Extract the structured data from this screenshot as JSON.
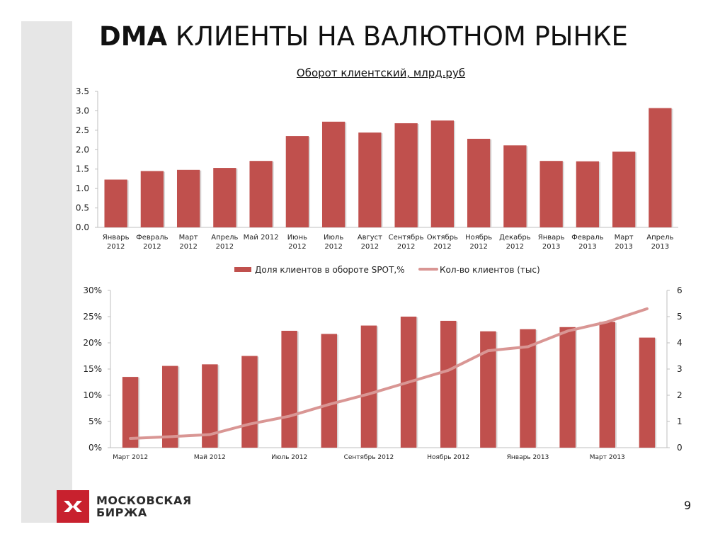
{
  "title": {
    "bold": "DMA",
    "rest": " КЛИЕНТЫ НА ВАЛЮТНОМ РЫНКЕ"
  },
  "page_number": "9",
  "logo": {
    "line1": "МОСКОВСКАЯ",
    "line2": "БИРЖА"
  },
  "colors": {
    "bar": "#c0504d",
    "line": "#d99694",
    "brand": "#c8212e"
  },
  "chart_data": [
    {
      "type": "bar",
      "title": "Оборот клиентский,  млрд.руб",
      "ylim": [
        0,
        3.5
      ],
      "yticks": [
        "0.0",
        "0.5",
        "1.0",
        "1.5",
        "2.0",
        "2.5",
        "3.0",
        "3.5"
      ],
      "categories": [
        [
          "Январь",
          "2012"
        ],
        [
          "Февраль",
          "2012"
        ],
        [
          "Март",
          "2012"
        ],
        [
          "Апрель",
          "2012"
        ],
        [
          "Май 2012"
        ],
        [
          "Июнь",
          "2012"
        ],
        [
          "Июль",
          "2012"
        ],
        [
          "Август",
          "2012"
        ],
        [
          "Сентябрь",
          "2012"
        ],
        [
          "Октябрь",
          "2012"
        ],
        [
          "Ноябрь",
          "2012"
        ],
        [
          "Декабрь",
          "2012"
        ],
        [
          "Январь",
          "2013"
        ],
        [
          "Февраль",
          "2013"
        ],
        [
          "Март",
          "2013"
        ],
        [
          "Апрель",
          "2013"
        ]
      ],
      "values": [
        1.23,
        1.45,
        1.48,
        1.53,
        1.71,
        2.35,
        2.72,
        2.44,
        2.68,
        2.75,
        2.28,
        2.11,
        1.71,
        1.7,
        1.95,
        3.07
      ]
    },
    {
      "type": "bar+line",
      "series": [
        {
          "name": "Доля клиентов в обороте SPOT,%",
          "type": "bar",
          "axis": "left",
          "values": [
            13.5,
            15.6,
            15.9,
            17.5,
            22.3,
            21.7,
            23.3,
            25.0,
            24.2,
            22.2,
            22.6,
            23.0,
            24.0,
            21.0
          ]
        },
        {
          "name": "Кол-во клиентов (тыс)",
          "type": "line",
          "axis": "right",
          "values": [
            0.35,
            0.42,
            0.5,
            0.9,
            1.2,
            1.65,
            2.05,
            2.5,
            2.95,
            3.7,
            3.85,
            4.45,
            4.8,
            5.3
          ]
        }
      ],
      "y_left": {
        "lim": [
          0,
          30
        ],
        "ticks": [
          "0%",
          "5%",
          "10%",
          "15%",
          "20%",
          "25%",
          "30%"
        ]
      },
      "y_right": {
        "lim": [
          0,
          6
        ],
        "ticks": [
          "0",
          "1",
          "2",
          "3",
          "4",
          "5",
          "6"
        ]
      },
      "x_labels": [
        "Март 2012",
        "",
        "Май 2012",
        "",
        "Июль 2012",
        "",
        "Сентябрь 2012",
        "",
        "Ноябрь 2012",
        "",
        "Январь 2013",
        "",
        "Март 2013",
        ""
      ]
    }
  ]
}
